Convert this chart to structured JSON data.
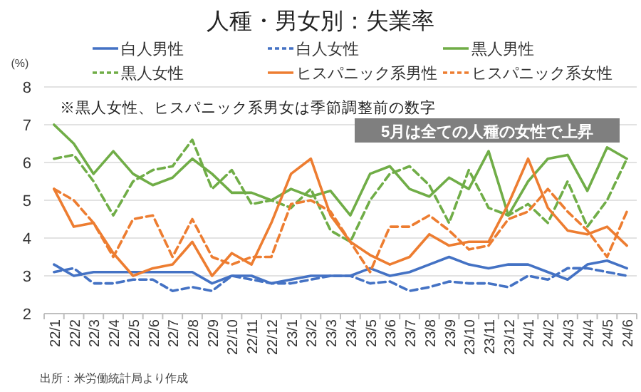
{
  "chart_data": {
    "type": "line",
    "title": "人種・男女別：失業率",
    "ylabel": "(%)",
    "categories": [
      "22/1",
      "22/2",
      "22/3",
      "22/4",
      "22/5",
      "22/6",
      "22/7",
      "22/8",
      "22/9",
      "22/10",
      "22/11",
      "22/12",
      "23/1",
      "23/2",
      "23/3",
      "23/4",
      "23/5",
      "23/6",
      "23/7",
      "23/8",
      "23/9",
      "23/10",
      "23/11",
      "23/12",
      "24/1",
      "24/2",
      "24/3",
      "24/4",
      "24/5",
      "24/6"
    ],
    "series": [
      {
        "name": "白人男性",
        "color": "#4472c4",
        "line_style": "solid",
        "values": [
          3.3,
          3.0,
          3.1,
          3.1,
          3.1,
          3.1,
          3.1,
          3.1,
          2.8,
          3.0,
          3.0,
          2.8,
          2.9,
          3.0,
          3.0,
          3.0,
          3.2,
          3.0,
          3.1,
          3.3,
          3.5,
          3.3,
          3.2,
          3.3,
          3.3,
          3.1,
          2.9,
          3.3,
          3.4,
          3.2
        ]
      },
      {
        "name": "白人女性",
        "color": "#4472c4",
        "line_style": "dashed",
        "values": [
          3.1,
          3.2,
          2.8,
          2.8,
          2.9,
          2.9,
          2.6,
          2.7,
          2.6,
          3.0,
          2.9,
          2.8,
          2.8,
          2.9,
          3.0,
          3.0,
          2.8,
          2.85,
          2.6,
          2.7,
          2.85,
          2.8,
          2.8,
          2.7,
          3.0,
          2.9,
          3.2,
          3.2,
          3.1,
          3.0
        ]
      },
      {
        "name": "黒人男性",
        "color": "#70ad47",
        "line_style": "solid",
        "values": [
          7.0,
          6.5,
          5.7,
          6.3,
          5.7,
          5.4,
          5.6,
          6.1,
          5.7,
          5.2,
          5.2,
          5.0,
          5.3,
          5.1,
          5.25,
          4.6,
          5.7,
          5.9,
          5.3,
          5.1,
          5.6,
          5.3,
          6.3,
          4.6,
          5.5,
          6.1,
          6.2,
          5.25,
          6.4,
          6.1
        ]
      },
      {
        "name": "黒人女性",
        "color": "#70ad47",
        "line_style": "dashed",
        "values": [
          6.1,
          6.2,
          5.5,
          4.6,
          5.5,
          5.8,
          5.9,
          6.6,
          5.3,
          5.8,
          4.9,
          5.0,
          4.8,
          5.3,
          4.2,
          3.9,
          5.0,
          5.7,
          5.9,
          5.4,
          4.4,
          5.8,
          4.8,
          4.6,
          4.9,
          4.4,
          5.5,
          4.3,
          5.0,
          6.1
        ]
      },
      {
        "name": "ヒスパニック系男性",
        "color": "#ed7d31",
        "line_style": "solid",
        "values": [
          5.3,
          4.3,
          4.4,
          3.6,
          3.0,
          3.2,
          3.3,
          3.9,
          3.0,
          3.6,
          3.3,
          4.4,
          5.7,
          6.1,
          4.6,
          3.9,
          3.55,
          3.3,
          3.5,
          4.1,
          3.8,
          3.9,
          3.9,
          4.9,
          6.1,
          4.8,
          4.2,
          4.1,
          4.3,
          3.8
        ]
      },
      {
        "name": "ヒスパニック系女性",
        "color": "#ed7d31",
        "line_style": "dashed",
        "values": [
          5.3,
          5.0,
          4.4,
          3.5,
          4.5,
          4.6,
          3.5,
          4.5,
          3.5,
          3.3,
          3.5,
          3.5,
          4.9,
          5.0,
          4.7,
          3.9,
          3.1,
          4.3,
          4.3,
          4.6,
          4.2,
          3.7,
          3.8,
          4.5,
          4.7,
          5.3,
          4.7,
          4.2,
          3.5,
          4.7
        ]
      }
    ],
    "ylim": [
      2,
      8
    ],
    "yticks": [
      2,
      3,
      4,
      5,
      6,
      7,
      8
    ],
    "grid": "y",
    "legend": "top",
    "marker": "none",
    "annotations": [
      "※黒人女性、ヒスパニック系男女は季節調整前の数字",
      "5月は全ての人種の女性で上昇",
      "出所：米労働統計局より作成"
    ]
  }
}
